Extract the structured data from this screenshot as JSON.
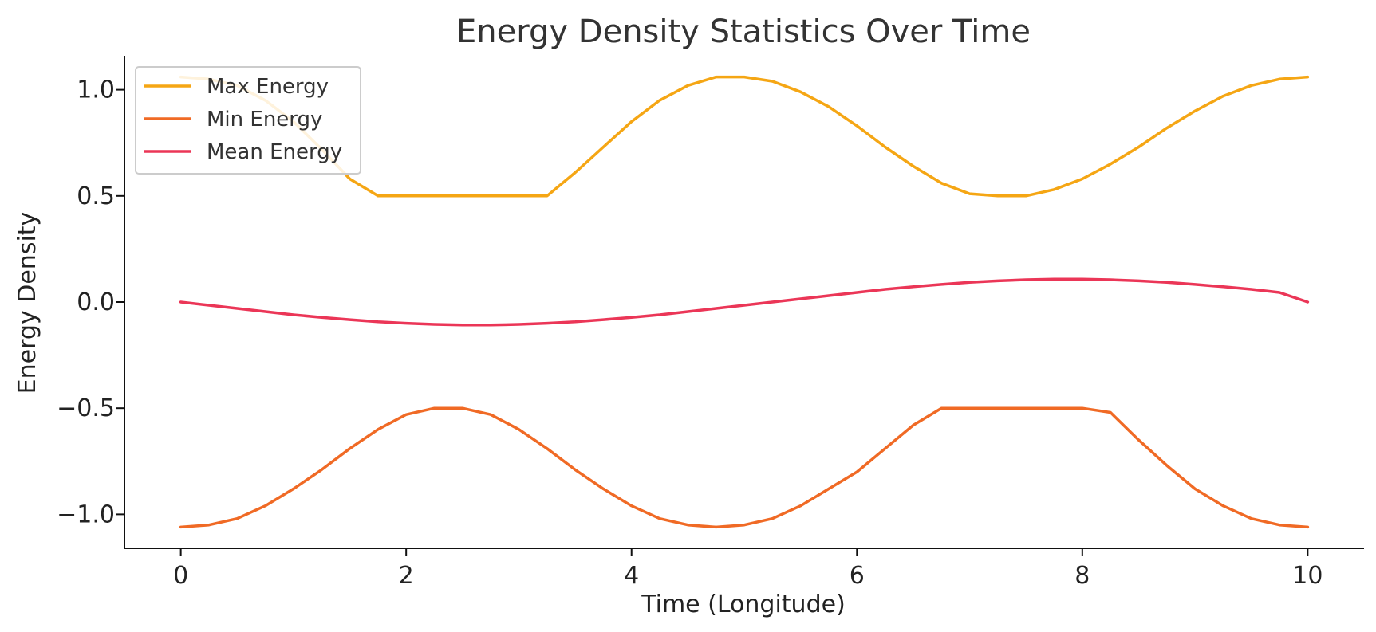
{
  "chart_data": {
    "type": "line",
    "title": "Energy Density Statistics Over Time",
    "xlabel": "Time (Longitude)",
    "ylabel": "Energy Density",
    "xlim": [
      -0.5,
      10.5
    ],
    "ylim": [
      -1.16,
      1.16
    ],
    "xticks": [
      0,
      2,
      4,
      6,
      8,
      10
    ],
    "xtick_labels": [
      "0",
      "2",
      "4",
      "6",
      "8",
      "10"
    ],
    "yticks": [
      1.0,
      0.5,
      0.0,
      -0.5,
      -1.0
    ],
    "ytick_labels": [
      "1.0",
      "0.5",
      "0.0",
      "−0.5",
      "−1.0"
    ],
    "grid": false,
    "legend_position": "upper-left",
    "x": [
      0,
      0.25,
      0.5,
      0.75,
      1.0,
      1.25,
      1.5,
      1.75,
      2.0,
      2.25,
      2.5,
      2.75,
      3.0,
      3.25,
      3.5,
      3.75,
      4.0,
      4.25,
      4.5,
      4.75,
      5.0,
      5.25,
      5.5,
      5.75,
      6.0,
      6.25,
      6.5,
      6.75,
      7.0,
      7.25,
      7.5,
      7.75,
      8.0,
      8.25,
      8.5,
      8.75,
      9.0,
      9.25,
      9.5,
      9.75,
      10.0
    ],
    "series": [
      {
        "name": "Max Energy",
        "color": "#F5A614",
        "values": [
          1.06,
          1.05,
          1.02,
          0.95,
          0.85,
          0.72,
          0.58,
          0.5,
          0.5,
          0.5,
          0.5,
          0.5,
          0.5,
          0.5,
          0.61,
          0.73,
          0.85,
          0.95,
          1.02,
          1.06,
          1.06,
          1.04,
          0.99,
          0.92,
          0.83,
          0.73,
          0.64,
          0.56,
          0.51,
          0.5,
          0.5,
          0.53,
          0.58,
          0.65,
          0.73,
          0.82,
          0.9,
          0.97,
          1.02,
          1.05,
          1.06
        ]
      },
      {
        "name": "Min Energy",
        "color": "#F06A25",
        "values": [
          -1.06,
          -1.05,
          -1.02,
          -0.96,
          -0.88,
          -0.79,
          -0.69,
          -0.6,
          -0.53,
          -0.5,
          -0.5,
          -0.53,
          -0.6,
          -0.69,
          -0.79,
          -0.88,
          -0.96,
          -1.02,
          -1.05,
          -1.06,
          -1.05,
          -1.02,
          -0.96,
          -0.88,
          -0.8,
          -0.69,
          -0.58,
          -0.5,
          -0.5,
          -0.5,
          -0.5,
          -0.5,
          -0.5,
          -0.52,
          -0.65,
          -0.77,
          -0.88,
          -0.96,
          -1.02,
          -1.05,
          -1.06
        ]
      },
      {
        "name": "Mean Energy",
        "color": "#EB3657",
        "values": [
          0.0,
          -0.015,
          -0.03,
          -0.045,
          -0.06,
          -0.072,
          -0.083,
          -0.093,
          -0.1,
          -0.105,
          -0.108,
          -0.108,
          -0.105,
          -0.1,
          -0.093,
          -0.083,
          -0.072,
          -0.06,
          -0.045,
          -0.03,
          -0.015,
          0.0,
          0.015,
          0.03,
          0.045,
          0.06,
          0.072,
          0.083,
          0.093,
          0.1,
          0.105,
          0.108,
          0.108,
          0.105,
          0.1,
          0.093,
          0.083,
          0.072,
          0.06,
          0.045,
          0.0
        ]
      }
    ]
  }
}
